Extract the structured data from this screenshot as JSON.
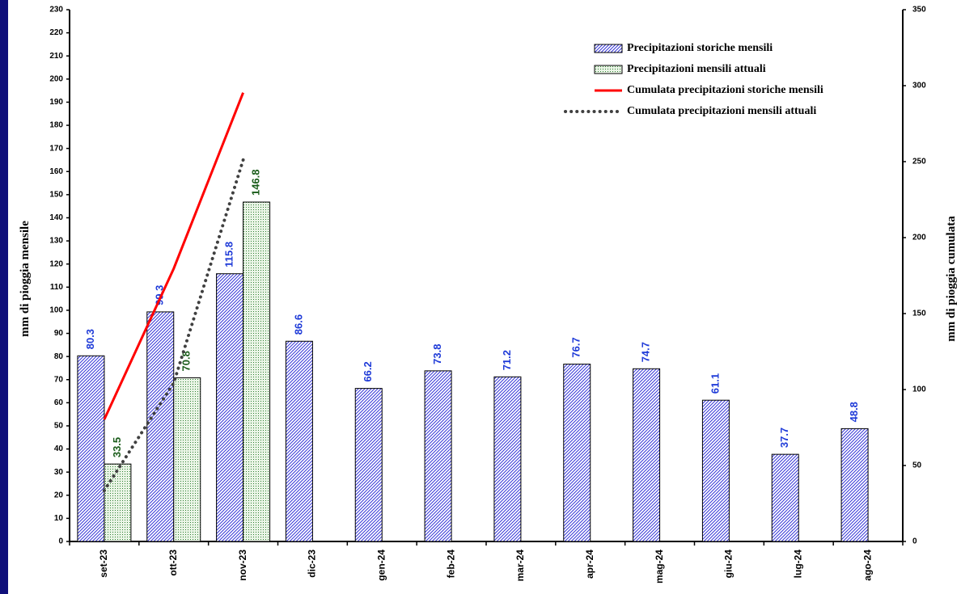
{
  "chart_data": {
    "type": "bar",
    "categories": [
      "set-23",
      "ott-23",
      "nov-23",
      "dic-23",
      "gen-24",
      "feb-24",
      "mar-24",
      "apr-24",
      "mag-24",
      "giu-24",
      "lug-24",
      "ago-24"
    ],
    "y_label": "mm di pioggia mensile",
    "y2_label": "mm di pioggia cumulata",
    "ylim": [
      0,
      230
    ],
    "yticks": [
      0,
      10,
      20,
      30,
      40,
      50,
      60,
      70,
      80,
      90,
      100,
      110,
      120,
      130,
      140,
      150,
      160,
      170,
      180,
      190,
      200,
      210,
      220,
      230
    ],
    "y2lim": [
      0,
      350
    ],
    "y2ticks": [
      0,
      50,
      100,
      150,
      200,
      250,
      300,
      350
    ],
    "series": [
      {
        "name": "Precipitazioni storiche mensili",
        "type": "bar",
        "color": "#2b2bd0",
        "label_color": "#1f3bd8",
        "values": [
          80.3,
          99.3,
          115.8,
          86.6,
          66.2,
          73.8,
          71.2,
          76.7,
          74.7,
          61.1,
          37.7,
          48.8
        ]
      },
      {
        "name": "Precipitazioni mensili attuali",
        "type": "bar",
        "color": "#2e7d32",
        "label_color": "#1a5c1a",
        "values": [
          33.5,
          70.8,
          146.8,
          null,
          null,
          null,
          null,
          null,
          null,
          null,
          null,
          null
        ]
      },
      {
        "name": "Cumulata precipitazioni storiche mensili",
        "type": "line",
        "axis": "y2",
        "color": "#ff0000",
        "dash": false,
        "values": [
          80.3,
          179.6,
          295.4,
          null,
          null,
          null,
          null,
          null,
          null,
          null,
          null,
          null
        ]
      },
      {
        "name": "Cumulata precipitazioni mensili attuali",
        "type": "line",
        "axis": "y2",
        "color": "#404040",
        "dash": true,
        "values": [
          33.5,
          104.3,
          251.1,
          null,
          null,
          null,
          null,
          null,
          null,
          null,
          null,
          null
        ]
      }
    ]
  }
}
